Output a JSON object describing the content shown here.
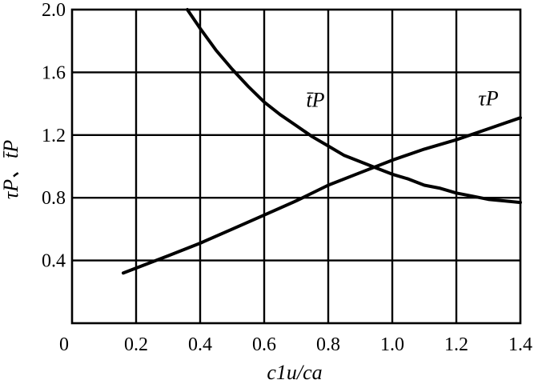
{
  "chart_data": {
    "type": "line",
    "title": "",
    "xlabel": "c1u/ca",
    "ylabel": "τP、t̄P",
    "xlim": [
      0,
      1.4
    ],
    "ylim": [
      0,
      2.0
    ],
    "grid": true,
    "x_ticks": [
      {
        "value": 0,
        "label": "0"
      },
      {
        "value": 0.2,
        "label": "0.2"
      },
      {
        "value": 0.4,
        "label": "0.4"
      },
      {
        "value": 0.6,
        "label": "0.6"
      },
      {
        "value": 0.8,
        "label": "0.8"
      },
      {
        "value": 1.0,
        "label": "1.0"
      },
      {
        "value": 1.2,
        "label": "1.2"
      },
      {
        "value": 1.4,
        "label": "1.4"
      }
    ],
    "y_ticks": [
      {
        "value": 0.4,
        "label": "0.4"
      },
      {
        "value": 0.8,
        "label": "0.8"
      },
      {
        "value": 1.2,
        "label": "1.2"
      },
      {
        "value": 1.6,
        "label": "1.6"
      },
      {
        "value": 2.0,
        "label": "2.0"
      }
    ],
    "series": [
      {
        "name": "t̄P",
        "x": [
          0.36,
          0.4,
          0.45,
          0.5,
          0.55,
          0.6,
          0.65,
          0.7,
          0.75,
          0.8,
          0.85,
          0.9,
          0.95,
          1.0,
          1.05,
          1.1,
          1.15,
          1.2,
          1.25,
          1.3,
          1.35,
          1.4
        ],
        "y": [
          2.0,
          1.88,
          1.74,
          1.62,
          1.51,
          1.41,
          1.33,
          1.26,
          1.19,
          1.13,
          1.07,
          1.03,
          0.99,
          0.95,
          0.92,
          0.88,
          0.86,
          0.83,
          0.81,
          0.79,
          0.78,
          0.77
        ]
      },
      {
        "name": "τP",
        "x": [
          0.16,
          0.3,
          0.4,
          0.5,
          0.6,
          0.7,
          0.8,
          0.9,
          1.0,
          1.1,
          1.2,
          1.3,
          1.4
        ],
        "y": [
          0.32,
          0.43,
          0.51,
          0.6,
          0.69,
          0.78,
          0.88,
          0.96,
          1.04,
          1.11,
          1.17,
          1.24,
          1.31
        ]
      }
    ],
    "series_labels": [
      {
        "series": 0,
        "x": 0.76,
        "y": 1.38
      },
      {
        "series": 1,
        "x": 1.3,
        "y": 1.39
      }
    ]
  }
}
